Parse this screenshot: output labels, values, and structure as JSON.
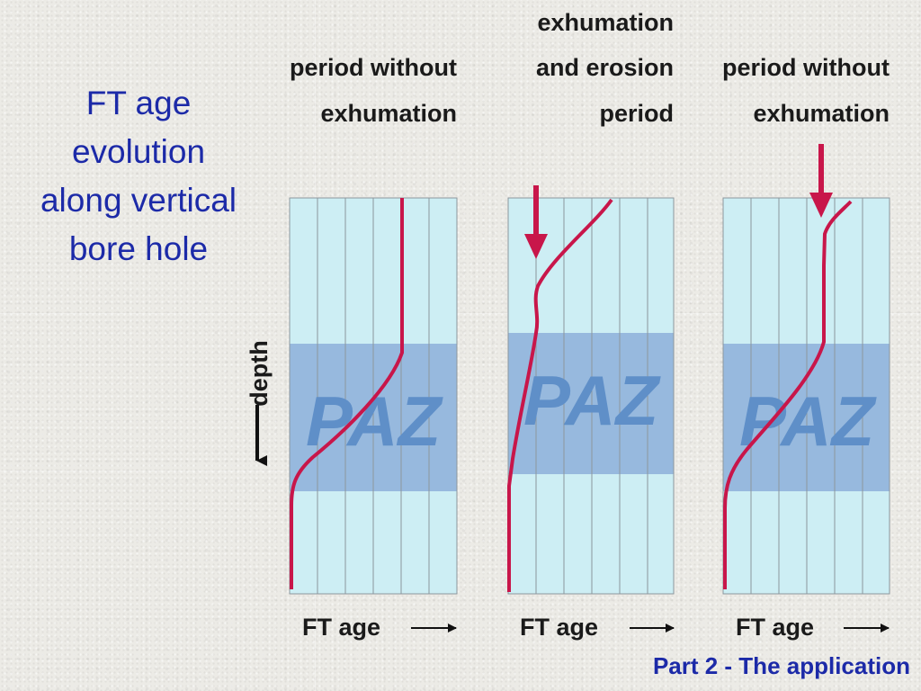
{
  "title_lines": [
    "FT age",
    "evolution",
    "along vertical",
    "bore hole"
  ],
  "footer": "Part 2 - The application",
  "depth_label": "depth",
  "panels": [
    {
      "header_lines": [
        "period without",
        "exhumation"
      ],
      "zone_label": "PAZ",
      "axis_label": "FT age",
      "has_exhumation_arrow": false
    },
    {
      "header_lines": [
        "exhumation",
        "and erosion",
        "period"
      ],
      "zone_label": "PAZ",
      "axis_label": "FT age",
      "has_exhumation_arrow": true
    },
    {
      "header_lines": [
        "period without",
        "exhumation"
      ],
      "zone_label": "PAZ",
      "axis_label": "FT age",
      "has_exhumation_arrow": true
    }
  ],
  "colors": {
    "title_blue": "#1c2aa8",
    "panel_fill": "#cdeef4",
    "paz_fill": "#97b9de",
    "curve_red": "#c8164a",
    "grid_line": "#8c969c"
  }
}
